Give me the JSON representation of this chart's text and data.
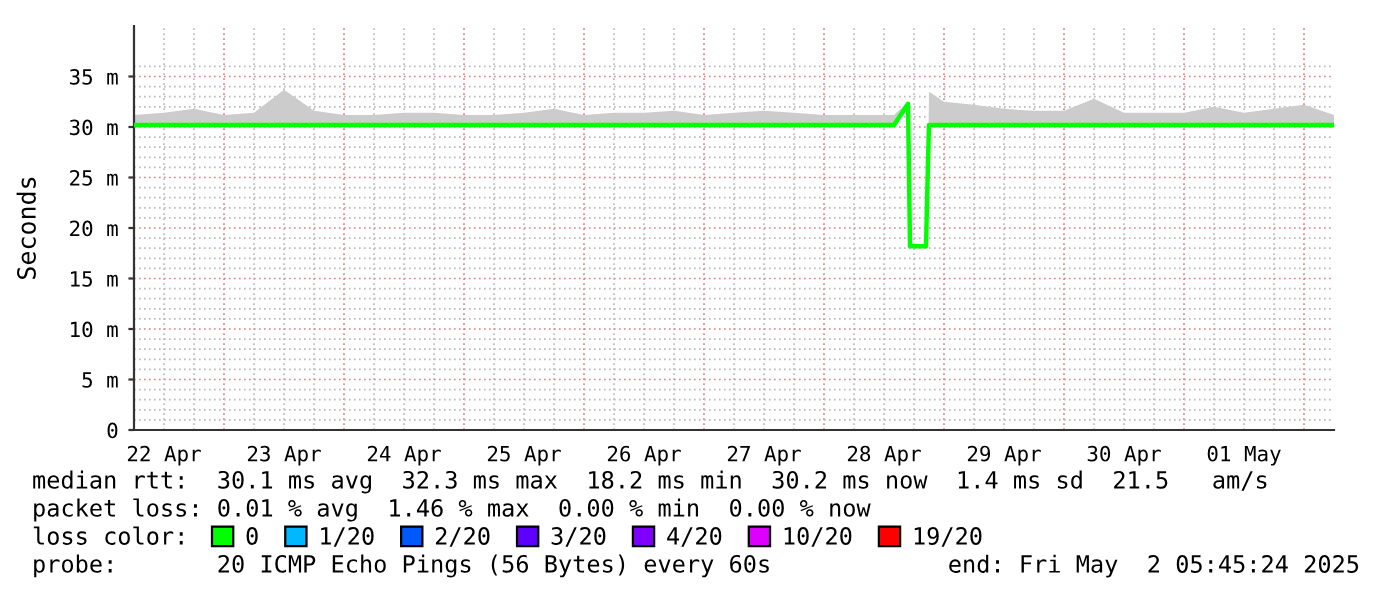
{
  "chart_data": {
    "type": "line",
    "ylabel": "Seconds",
    "x": [
      "2025-04-22T06:00",
      "2025-04-22T12:00",
      "2025-04-22T18:00",
      "2025-04-23T00:00",
      "2025-04-23T06:00",
      "2025-04-23T12:00",
      "2025-04-23T18:00",
      "2025-04-24T00:00",
      "2025-04-24T06:00",
      "2025-04-24T12:00",
      "2025-04-24T18:00",
      "2025-04-25T00:00",
      "2025-04-25T06:00",
      "2025-04-25T12:00",
      "2025-04-25T18:00",
      "2025-04-26T00:00",
      "2025-04-26T06:00",
      "2025-04-26T12:00",
      "2025-04-26T18:00",
      "2025-04-27T00:00",
      "2025-04-27T06:00",
      "2025-04-27T12:00",
      "2025-04-27T18:00",
      "2025-04-28T00:00",
      "2025-04-28T06:00",
      "2025-04-28T12:00",
      "2025-04-28T14:00",
      "2025-04-28T16:48",
      "2025-04-28T17:12",
      "2025-04-28T20:24",
      "2025-04-28T20:48",
      "2025-04-28T21:00",
      "2025-04-29T00:00",
      "2025-04-29T06:00",
      "2025-04-29T12:00",
      "2025-04-29T18:00",
      "2025-04-30T00:00",
      "2025-04-30T06:00",
      "2025-04-30T12:00",
      "2025-04-30T18:00",
      "2025-05-01T00:00",
      "2025-05-01T06:00",
      "2025-05-01T12:00",
      "2025-05-01T18:00",
      "2025-05-02T00:00",
      "2025-05-02T06:00"
    ],
    "series": [
      {
        "name": "0",
        "color": "#00ff00",
        "values": [
          30.2,
          30.2,
          30.2,
          30.2,
          30.2,
          30.2,
          30.2,
          30.2,
          30.2,
          30.2,
          30.2,
          30.2,
          30.2,
          30.2,
          30.2,
          30.2,
          30.2,
          30.2,
          30.2,
          30.2,
          30.2,
          30.2,
          30.2,
          30.2,
          30.2,
          30.2,
          30.2,
          32.3,
          18.2,
          18.2,
          26.6,
          30.2,
          30.2,
          30.2,
          30.2,
          30.2,
          30.2,
          30.2,
          30.2,
          30.2,
          30.2,
          30.2,
          30.2,
          30.2,
          30.2,
          30.2
        ],
        "lower": [
          30,
          30,
          30,
          30,
          30,
          30,
          30,
          30,
          30,
          30,
          30,
          30,
          30,
          30,
          30,
          30,
          30,
          30,
          30,
          30,
          30,
          30,
          30,
          30,
          30,
          30,
          30,
          31.8,
          18.2,
          18.2,
          26.6,
          30,
          30,
          30,
          30,
          30,
          30,
          30,
          30,
          30,
          30,
          30,
          30,
          30,
          30,
          30
        ],
        "upper": [
          31.2,
          31.4,
          31.8,
          31.2,
          31.4,
          33.7,
          31.6,
          31.2,
          31.2,
          31.4,
          31.4,
          31.2,
          31.2,
          31.4,
          31.8,
          31.2,
          31.4,
          31.4,
          31.6,
          31.2,
          31.4,
          31.6,
          31.4,
          31.2,
          31.2,
          31.2,
          31.2,
          32.5,
          18.2,
          18.2,
          26.6,
          33.5,
          32.5,
          32.2,
          31.8,
          31.6,
          31.6,
          32.8,
          31.4,
          31.4,
          31.4,
          32,
          31.4,
          31.8,
          32.2,
          31.2
        ]
      },
      {
        "name": "1/20",
        "color": "#00b8ff",
        "values": [
          null,
          null,
          null,
          null,
          null,
          null,
          null,
          null,
          null,
          null,
          null,
          null,
          null,
          null,
          null,
          null,
          null,
          null,
          null,
          null,
          null,
          null,
          null,
          null,
          null,
          null,
          null,
          null,
          null,
          null,
          null,
          null,
          null,
          null,
          null,
          null,
          null,
          null,
          null,
          null,
          null,
          null,
          null,
          null,
          null,
          null
        ]
      },
      {
        "name": "2/20",
        "color": "#0059ff",
        "values": [
          null,
          null,
          null,
          null,
          null,
          null,
          null,
          null,
          null,
          null,
          null,
          null,
          null,
          null,
          null,
          null,
          null,
          null,
          null,
          null,
          null,
          null,
          null,
          null,
          null,
          null,
          null,
          null,
          null,
          null,
          null,
          null,
          null,
          null,
          null,
          null,
          null,
          null,
          null,
          null,
          null,
          null,
          null,
          null,
          null,
          null
        ]
      },
      {
        "name": "3/20",
        "color": "#5e00ff",
        "values": [
          null,
          null,
          null,
          null,
          null,
          null,
          null,
          null,
          null,
          null,
          null,
          null,
          null,
          null,
          null,
          null,
          null,
          null,
          null,
          null,
          null,
          null,
          null,
          null,
          null,
          null,
          null,
          null,
          null,
          null,
          null,
          null,
          null,
          null,
          null,
          null,
          null,
          null,
          null,
          null,
          null,
          null,
          null,
          null,
          null,
          null
        ]
      },
      {
        "name": "4/20",
        "color": "#7e00ff",
        "values": [
          null,
          null,
          null,
          null,
          null,
          null,
          null,
          null,
          null,
          null,
          null,
          null,
          null,
          null,
          null,
          null,
          null,
          null,
          null,
          null,
          null,
          null,
          null,
          null,
          null,
          null,
          null,
          null,
          null,
          null,
          null,
          null,
          null,
          null,
          null,
          null,
          null,
          null,
          null,
          null,
          null,
          null,
          null,
          null,
          null,
          null
        ]
      },
      {
        "name": "10/20",
        "color": "#dd00ff",
        "values": [
          null,
          null,
          null,
          null,
          null,
          null,
          null,
          null,
          null,
          null,
          null,
          null,
          null,
          null,
          null,
          null,
          null,
          null,
          null,
          null,
          null,
          null,
          null,
          null,
          null,
          null,
          null,
          null,
          null,
          null,
          null,
          null,
          null,
          null,
          null,
          null,
          null,
          null,
          null,
          null,
          null,
          null,
          null,
          null,
          null,
          null
        ]
      },
      {
        "name": "19/20",
        "color": "#ff0000",
        "values": [
          null,
          null,
          null,
          null,
          null,
          null,
          null,
          null,
          null,
          null,
          null,
          null,
          null,
          null,
          null,
          null,
          null,
          null,
          null,
          null,
          null,
          null,
          null,
          null,
          null,
          null,
          null,
          null,
          null,
          null,
          null,
          null,
          null,
          null,
          null,
          null,
          null,
          null,
          null,
          null,
          null,
          null,
          null,
          null,
          null,
          null
        ]
      }
    ],
    "xlim": [
      "2025-04-22T06:00",
      "2025-05-02T06:00"
    ],
    "xticks": [
      {
        "value": "2025-04-22T12:00",
        "label": "22 Apr"
      },
      {
        "value": "2025-04-23T12:00",
        "label": "23 Apr"
      },
      {
        "value": "2025-04-24T12:00",
        "label": "24 Apr"
      },
      {
        "value": "2025-04-25T12:00",
        "label": "25 Apr"
      },
      {
        "value": "2025-04-26T12:00",
        "label": "26 Apr"
      },
      {
        "value": "2025-04-27T12:00",
        "label": "27 Apr"
      },
      {
        "value": "2025-04-28T12:00",
        "label": "28 Apr"
      },
      {
        "value": "2025-04-29T12:00",
        "label": "29 Apr"
      },
      {
        "value": "2025-04-30T12:00",
        "label": "30 Apr"
      },
      {
        "value": "2025-05-01T12:00",
        "label": "01 May"
      },
      {
        "value": "2025-04-23T00:00",
        "label": null
      },
      {
        "value": "2025-04-24T00:00",
        "label": null
      },
      {
        "value": "2025-04-25T00:00",
        "label": null
      },
      {
        "value": "2025-04-26T00:00",
        "label": null
      },
      {
        "value": "2025-04-27T00:00",
        "label": null
      },
      {
        "value": "2025-04-28T00:00",
        "label": null
      },
      {
        "value": "2025-04-29T00:00",
        "label": null
      },
      {
        "value": "2025-04-30T00:00",
        "label": null
      },
      {
        "value": "2025-05-01T00:00",
        "label": null
      },
      {
        "value": "2025-05-02T00:00",
        "label": null
      }
    ],
    "ylim": [
      0,
      40
    ],
    "yticks": [
      0,
      {
        "value": 5,
        "label": "5 m"
      },
      {
        "value": 10,
        "label": "10 m"
      },
      {
        "value": 15,
        "label": "15 m"
      },
      {
        "value": 20,
        "label": "20 m"
      },
      {
        "value": 25,
        "label": "25 m"
      },
      {
        "value": 30,
        "label": "30 m"
      },
      {
        "value": 35,
        "label": "35 m"
      }
    ],
    "grid": true,
    "legend": "bottom",
    "marker": "none",
    "line_style": "solid",
    "annotations": [
      "median rtt:  30.1 ms avg  32.3 ms max  18.2 ms min  30.2 ms now  1.4 ms sd  21.5   am/s",
      "packet loss: 0.01 % avg  1.46 % max  0.00 % min  0.00 % now",
      "loss color:",
      "probe:       20 ICMP Echo Pings (56 Bytes) every 60s",
      "end: Fri May  2 05:45:24 2025"
    ]
  }
}
